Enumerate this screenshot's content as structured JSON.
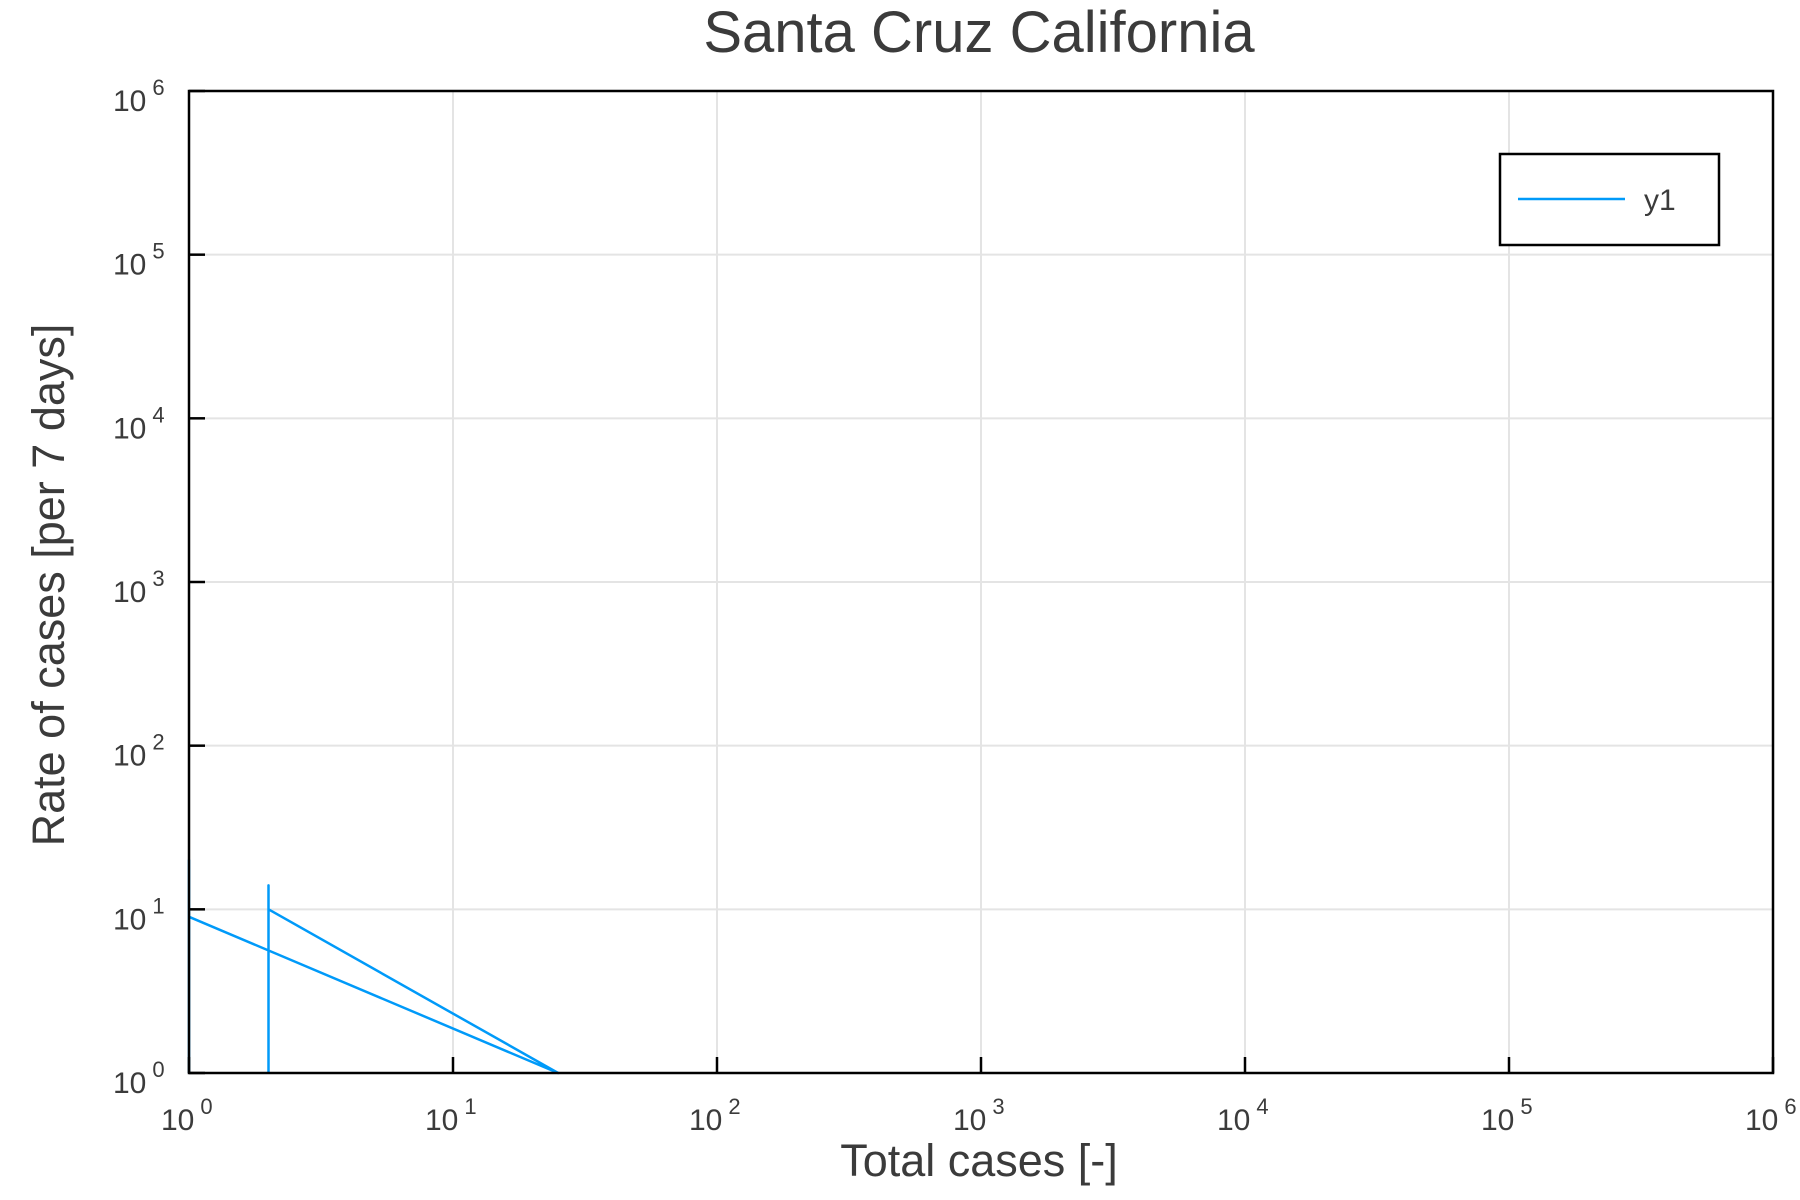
{
  "chart_data": {
    "type": "line",
    "title": "Santa Cruz California",
    "xlabel": "Total cases [-]",
    "ylabel": "Rate of cases [per 7 days]",
    "xscale": "log",
    "yscale": "log",
    "xlim": [
      1,
      1000000
    ],
    "ylim": [
      1,
      1000000
    ],
    "grid": true,
    "legend_position": "top-right",
    "x_ticks": [
      {
        "base": "10",
        "exp": "0",
        "value": 1
      },
      {
        "base": "10",
        "exp": "1",
        "value": 10
      },
      {
        "base": "10",
        "exp": "2",
        "value": 100
      },
      {
        "base": "10",
        "exp": "3",
        "value": 1000
      },
      {
        "base": "10",
        "exp": "4",
        "value": 10000
      },
      {
        "base": "10",
        "exp": "5",
        "value": 100000
      },
      {
        "base": "10",
        "exp": "6",
        "value": 1000000
      }
    ],
    "y_ticks": [
      {
        "base": "10",
        "exp": "0",
        "value": 1
      },
      {
        "base": "10",
        "exp": "1",
        "value": 10
      },
      {
        "base": "10",
        "exp": "2",
        "value": 100
      },
      {
        "base": "10",
        "exp": "3",
        "value": 1000
      },
      {
        "base": "10",
        "exp": "4",
        "value": 10000
      },
      {
        "base": "10",
        "exp": "5",
        "value": 100000
      },
      {
        "base": "10",
        "exp": "6",
        "value": 1000000
      }
    ],
    "series": [
      {
        "name": "y1",
        "color": "#009af9",
        "points": [
          {
            "x": 1,
            "y": 1
          },
          {
            "x": 1,
            "y": 20
          },
          {
            "x": 1,
            "y": 9
          },
          {
            "x": 25,
            "y": 1
          },
          {
            "x": 2,
            "y": 10
          },
          {
            "x": 2,
            "y": 14
          },
          {
            "x": 2,
            "y": 1
          }
        ]
      }
    ]
  }
}
